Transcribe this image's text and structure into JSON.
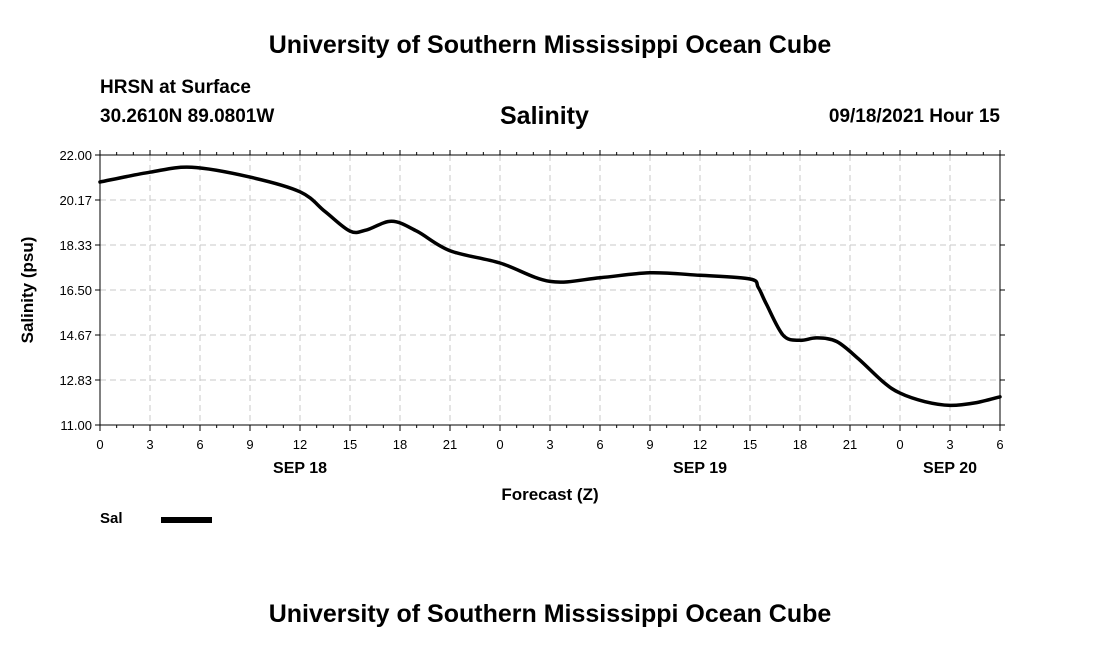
{
  "header": {
    "title": "University of Southern Mississippi Ocean Cube",
    "station": "HRSN at Surface",
    "coordinates": "30.2610N  89.0801W",
    "datetime": "09/18/2021 Hour 15"
  },
  "footer": {
    "title": "University of Southern Mississippi Ocean Cube"
  },
  "legend": {
    "label": "Sal",
    "color": "#000000"
  },
  "chart_data": {
    "type": "line",
    "title": "Salinity",
    "xlabel": "Forecast (Z)",
    "ylabel": "Salinity (psu)",
    "x_units": "hours since 09/18 00Z",
    "xlim": [
      0,
      54
    ],
    "ylim": [
      11.0,
      22.0
    ],
    "yticks": [
      "11.00",
      "12.83",
      "14.67",
      "16.50",
      "18.33",
      "20.17",
      "22.00"
    ],
    "xticks": [
      "0",
      "3",
      "6",
      "9",
      "12",
      "15",
      "18",
      "21",
      "0",
      "3",
      "6",
      "9",
      "12",
      "15",
      "18",
      "21",
      "0",
      "3",
      "6"
    ],
    "date_labels": [
      {
        "hour": 12,
        "label": "SEP 18"
      },
      {
        "hour": 36,
        "label": "SEP 19"
      },
      {
        "hour": 51,
        "label": "SEP 20"
      }
    ],
    "grid": true,
    "series": [
      {
        "name": "Sal",
        "color": "#000000",
        "x": [
          0,
          3,
          5.5,
          9,
          12,
          13.5,
          15,
          16,
          17.5,
          19,
          21,
          24,
          27,
          30,
          33,
          36,
          39,
          39.5,
          40,
          41,
          42,
          43,
          44.2,
          45.5,
          47,
          48,
          49.5,
          51,
          52.5,
          54
        ],
        "values": [
          20.9,
          21.3,
          21.5,
          21.1,
          20.5,
          19.7,
          18.9,
          18.95,
          19.3,
          18.9,
          18.1,
          17.6,
          16.85,
          17.0,
          17.2,
          17.1,
          16.95,
          16.6,
          15.9,
          14.65,
          14.45,
          14.55,
          14.4,
          13.7,
          12.75,
          12.3,
          11.95,
          11.8,
          11.9,
          12.15
        ]
      }
    ]
  }
}
